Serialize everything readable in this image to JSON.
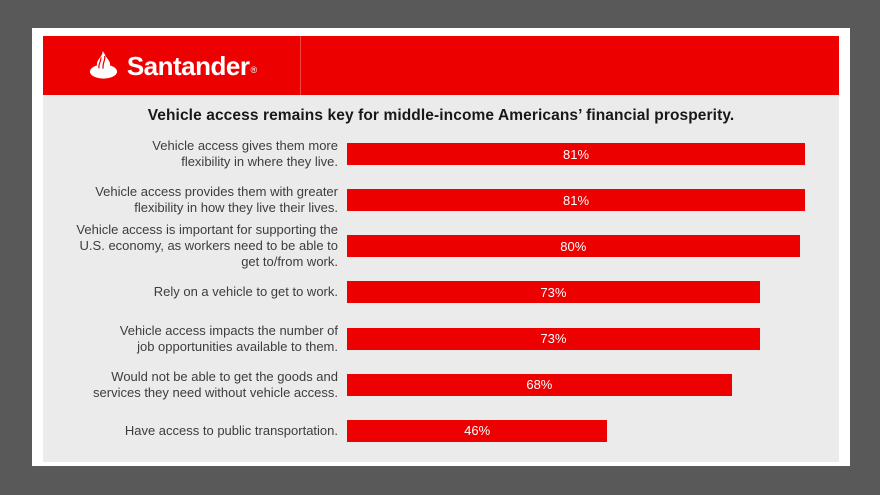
{
  "frame": {
    "border_color": "#595959",
    "margin_color": "#ffffff",
    "card_background": "#ebebeb"
  },
  "header": {
    "background_color": "#ec0000",
    "logo": {
      "brand": "Santander",
      "registered_mark": "®",
      "icon": "santander-flame-icon",
      "text_color": "#ffffff"
    }
  },
  "title": "Vehicle access remains key for middle-income Americans’ financial prosperity.",
  "chart_data": {
    "type": "bar",
    "orientation": "horizontal",
    "title": "Vehicle access remains key for middle-income Americans’ financial prosperity.",
    "categories": [
      "Vehicle access gives them more\nflexibility in where they live.",
      "Vehicle access provides them with greater\nflexibility in how they live their lives.",
      "Vehicle access is important for supporting the\nU.S. economy, as workers need to be able to\nget to/from work.",
      "Rely on a vehicle to get to work.",
      "Vehicle access impacts the number of\njob opportunities available to them.",
      "Would not be able to get the goods and\nservices they need without vehicle access.",
      "Have access to public transportation."
    ],
    "values": [
      81,
      81,
      80,
      73,
      73,
      68,
      46
    ],
    "value_labels": [
      "81%",
      "81%",
      "80%",
      "73%",
      "73%",
      "68%",
      "46%"
    ],
    "xlabel": "",
    "ylabel": "",
    "xlim": [
      0,
      87
    ],
    "grid": false,
    "legend": false,
    "bar_color": "#ec0000",
    "bar_label_color": "#ffffff",
    "category_label_color": "#3d3d3d",
    "plot_background": "#ebebeb"
  }
}
